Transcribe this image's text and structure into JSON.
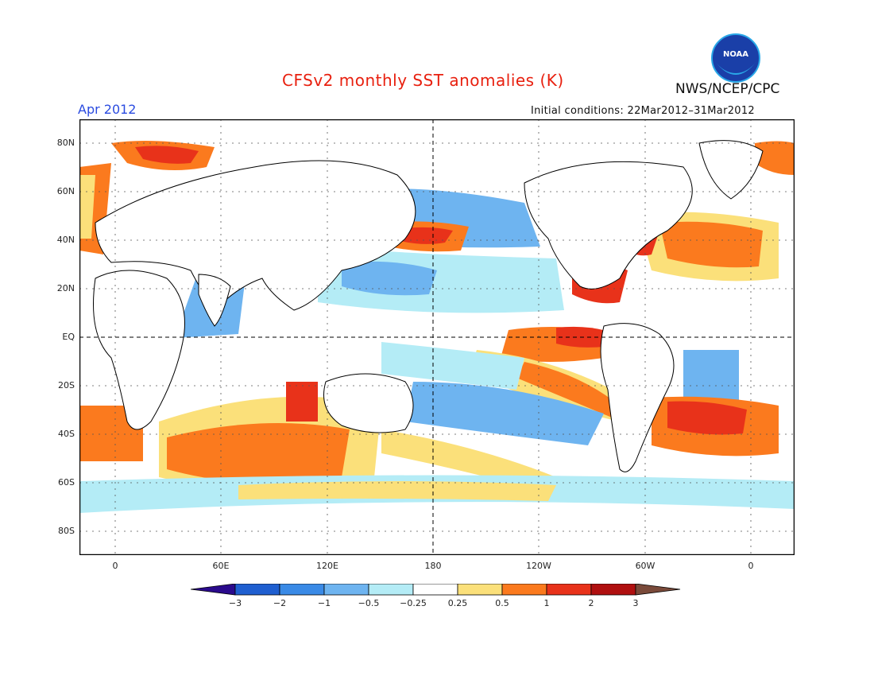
{
  "header": {
    "title": "CFSv2 monthly SST anomalies (K)",
    "month": "Apr 2012",
    "initial_conditions": "Initial conditions: 22Mar2012–31Mar2012",
    "agency": "NWS/NCEP/CPC",
    "logo_text": "NOAA"
  },
  "map": {
    "lat_labels": [
      "80N",
      "60N",
      "40N",
      "20N",
      "EQ",
      "20S",
      "40S",
      "60S",
      "80S"
    ],
    "lon_labels": [
      "0",
      "60E",
      "120E",
      "180",
      "120W",
      "60W",
      "0"
    ]
  },
  "colorbar": {
    "labels": [
      "−3",
      "−2",
      "−1",
      "−0.5",
      "−0.25",
      "0.25",
      "0.5",
      "1",
      "2",
      "3"
    ],
    "colors": [
      "#2a0a8c",
      "#1f5fd0",
      "#3a8ae6",
      "#6eb4f0",
      "#b4ecf6",
      "#ffffff",
      "#fbe07a",
      "#fb7a1e",
      "#e8321a",
      "#b01010",
      "#7a4a3a"
    ]
  },
  "colors": {
    "title": "#e8200f",
    "month": "#2a4be0",
    "land": "#ffffff",
    "coast": "#000000"
  }
}
